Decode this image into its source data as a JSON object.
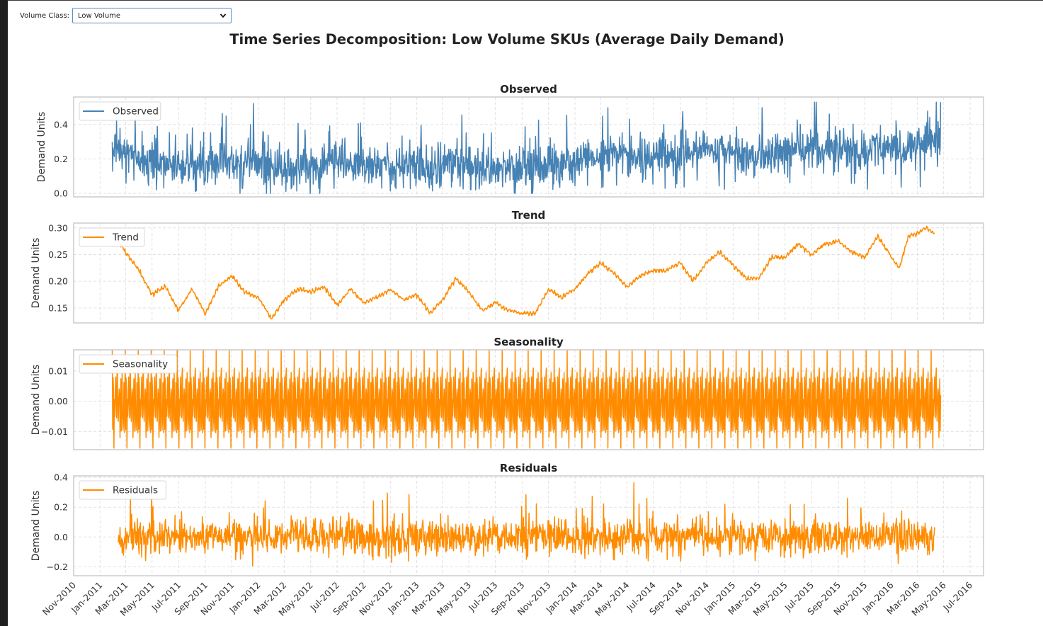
{
  "widget": {
    "label": "Volume Class:",
    "selected": "Low Volume",
    "icon": "chevron-down-icon"
  },
  "figure": {
    "suptitle": "Time Series Decomposition: Low Volume SKUs (Average Daily Demand)"
  },
  "chart_data": [
    {
      "type": "line",
      "title": "Observed",
      "ylabel": "Demand Units",
      "xlabel": "",
      "ylim": [
        -0.02,
        0.56
      ],
      "yticks": [
        "0.0",
        "0.2",
        "0.4"
      ],
      "ytick_values": [
        0.0,
        0.2,
        0.4
      ],
      "legend": "Observed",
      "legend_position": "top-left",
      "grid": true,
      "color": "#4682b4",
      "series": {
        "name": "Observed",
        "start": "2011-01-29",
        "end": "2016-04-24",
        "frequency": "daily",
        "trend_knots": [
          [
            "2011-01-29",
            0.28
          ],
          [
            "2011-03-15",
            0.23
          ],
          [
            "2011-05-15",
            0.18
          ],
          [
            "2011-08-01",
            0.15
          ],
          [
            "2011-10-01",
            0.17
          ],
          [
            "2011-12-01",
            0.19
          ],
          [
            "2012-02-01",
            0.16
          ],
          [
            "2012-03-15",
            0.14
          ],
          [
            "2012-06-01",
            0.18
          ],
          [
            "2012-09-01",
            0.16
          ],
          [
            "2012-12-01",
            0.17
          ],
          [
            "2013-02-01",
            0.15
          ],
          [
            "2013-04-01",
            0.2
          ],
          [
            "2013-06-01",
            0.15
          ],
          [
            "2013-09-15",
            0.14
          ],
          [
            "2013-11-01",
            0.18
          ],
          [
            "2014-02-01",
            0.19
          ],
          [
            "2014-04-01",
            0.23
          ],
          [
            "2014-06-01",
            0.2
          ],
          [
            "2014-09-01",
            0.23
          ],
          [
            "2014-12-01",
            0.25
          ],
          [
            "2015-03-01",
            0.21
          ],
          [
            "2015-05-01",
            0.25
          ],
          [
            "2015-09-01",
            0.27
          ],
          [
            "2015-11-01",
            0.24
          ],
          [
            "2015-12-15",
            0.28
          ],
          [
            "2016-02-01",
            0.24
          ],
          [
            "2016-03-01",
            0.29
          ],
          [
            "2016-04-24",
            0.3
          ]
        ],
        "noise_amplitude": 0.07,
        "min": 0.0,
        "max": 0.53
      }
    },
    {
      "type": "line",
      "title": "Trend",
      "ylabel": "Demand Units",
      "xlabel": "",
      "ylim": [
        0.122,
        0.309
      ],
      "yticks": [
        "0.15",
        "0.20",
        "0.25",
        "0.30"
      ],
      "ytick_values": [
        0.15,
        0.2,
        0.25,
        0.3
      ],
      "legend": "Trend",
      "legend_position": "top-left",
      "grid": true,
      "color": "#ff8c00",
      "series": {
        "name": "Trend",
        "start": "2011-02-12",
        "end": "2016-04-10",
        "points": [
          [
            "2011-02-12",
            0.275
          ],
          [
            "2011-03-01",
            0.255
          ],
          [
            "2011-04-01",
            0.22
          ],
          [
            "2011-05-01",
            0.175
          ],
          [
            "2011-06-01",
            0.19
          ],
          [
            "2011-07-01",
            0.145
          ],
          [
            "2011-08-01",
            0.185
          ],
          [
            "2011-09-01",
            0.14
          ],
          [
            "2011-10-01",
            0.19
          ],
          [
            "2011-11-01",
            0.21
          ],
          [
            "2011-12-01",
            0.18
          ],
          [
            "2012-01-01",
            0.17
          ],
          [
            "2012-02-01",
            0.13
          ],
          [
            "2012-03-01",
            0.165
          ],
          [
            "2012-04-01",
            0.185
          ],
          [
            "2012-05-01",
            0.18
          ],
          [
            "2012-06-01",
            0.19
          ],
          [
            "2012-07-01",
            0.155
          ],
          [
            "2012-08-01",
            0.185
          ],
          [
            "2012-09-01",
            0.16
          ],
          [
            "2012-10-01",
            0.17
          ],
          [
            "2012-11-01",
            0.185
          ],
          [
            "2012-12-01",
            0.165
          ],
          [
            "2013-01-01",
            0.175
          ],
          [
            "2013-02-01",
            0.14
          ],
          [
            "2013-03-01",
            0.165
          ],
          [
            "2013-04-01",
            0.205
          ],
          [
            "2013-05-01",
            0.18
          ],
          [
            "2013-06-01",
            0.145
          ],
          [
            "2013-07-01",
            0.16
          ],
          [
            "2013-08-01",
            0.145
          ],
          [
            "2013-09-01",
            0.14
          ],
          [
            "2013-10-01",
            0.14
          ],
          [
            "2013-11-01",
            0.185
          ],
          [
            "2013-12-01",
            0.17
          ],
          [
            "2014-01-01",
            0.185
          ],
          [
            "2014-02-01",
            0.215
          ],
          [
            "2014-03-01",
            0.235
          ],
          [
            "2014-04-01",
            0.215
          ],
          [
            "2014-05-01",
            0.19
          ],
          [
            "2014-06-01",
            0.21
          ],
          [
            "2014-07-01",
            0.22
          ],
          [
            "2014-08-01",
            0.22
          ],
          [
            "2014-09-01",
            0.235
          ],
          [
            "2014-10-01",
            0.2
          ],
          [
            "2014-11-01",
            0.235
          ],
          [
            "2014-12-01",
            0.255
          ],
          [
            "2015-01-01",
            0.23
          ],
          [
            "2015-02-01",
            0.205
          ],
          [
            "2015-03-01",
            0.205
          ],
          [
            "2015-04-01",
            0.245
          ],
          [
            "2015-05-01",
            0.245
          ],
          [
            "2015-06-01",
            0.27
          ],
          [
            "2015-07-01",
            0.25
          ],
          [
            "2015-08-01",
            0.27
          ],
          [
            "2015-09-01",
            0.275
          ],
          [
            "2015-10-01",
            0.255
          ],
          [
            "2015-11-01",
            0.245
          ],
          [
            "2015-12-01",
            0.285
          ],
          [
            "2016-01-01",
            0.245
          ],
          [
            "2016-01-20",
            0.225
          ],
          [
            "2016-02-10",
            0.285
          ],
          [
            "2016-03-01",
            0.29
          ],
          [
            "2016-03-20",
            0.3
          ],
          [
            "2016-04-10",
            0.29
          ]
        ]
      }
    },
    {
      "type": "line",
      "title": "Seasonality",
      "ylabel": "Demand Units",
      "xlabel": "",
      "ylim": [
        -0.016,
        0.017
      ],
      "yticks": [
        "−0.01",
        "0.00",
        "0.01"
      ],
      "ytick_values": [
        -0.01,
        0.0,
        0.01
      ],
      "legend": "Seasonality",
      "legend_position": "top-left",
      "grid": true,
      "color": "#ff8c00",
      "series": {
        "name": "Seasonality",
        "start": "2011-01-29",
        "end": "2016-04-24",
        "period_days": 30,
        "max": 0.017,
        "min": -0.0155
      }
    },
    {
      "type": "line",
      "title": "Residuals",
      "ylabel": "Demand Units",
      "xlabel": "",
      "ylim": [
        -0.26,
        0.41
      ],
      "yticks": [
        "−0.2",
        "0.0",
        "0.2",
        "0.4"
      ],
      "ytick_values": [
        -0.2,
        0.0,
        0.2,
        0.4
      ],
      "legend": "Residuals",
      "legend_position": "top-left",
      "grid": true,
      "color": "#ff8c00",
      "series": {
        "name": "Residuals",
        "start": "2011-02-12",
        "end": "2016-04-10",
        "noise_amplitude": 0.06,
        "max": 0.38,
        "min": -0.24
      }
    }
  ],
  "x_axis": {
    "xlim": [
      "2010-11-01",
      "2016-08-01"
    ],
    "tick_dates": [
      "2010-11-01",
      "2011-01-01",
      "2011-03-01",
      "2011-05-01",
      "2011-07-01",
      "2011-09-01",
      "2011-11-01",
      "2012-01-01",
      "2012-03-01",
      "2012-05-01",
      "2012-07-01",
      "2012-09-01",
      "2012-11-01",
      "2013-01-01",
      "2013-03-01",
      "2013-05-01",
      "2013-07-01",
      "2013-09-01",
      "2013-11-01",
      "2014-01-01",
      "2014-03-01",
      "2014-05-01",
      "2014-07-01",
      "2014-09-01",
      "2014-11-01",
      "2015-01-01",
      "2015-03-01",
      "2015-05-01",
      "2015-07-01",
      "2015-09-01",
      "2015-11-01",
      "2016-01-01",
      "2016-03-01",
      "2016-05-01",
      "2016-07-01"
    ],
    "tick_labels": [
      "Nov-2010",
      "Jan-2011",
      "Mar-2011",
      "May-2011",
      "Jul-2011",
      "Sep-2011",
      "Nov-2011",
      "Jan-2012",
      "Mar-2012",
      "May-2012",
      "Jul-2012",
      "Sep-2012",
      "Nov-2012",
      "Jan-2013",
      "Mar-2013",
      "May-2013",
      "Jul-2013",
      "Sep-2013",
      "Nov-2013",
      "Jan-2014",
      "Mar-2014",
      "May-2014",
      "Jul-2014",
      "Sep-2014",
      "Nov-2014",
      "Jan-2015",
      "Mar-2015",
      "May-2015",
      "Jul-2015",
      "Sep-2015",
      "Nov-2015",
      "Jan-2016",
      "Mar-2016",
      "May-2016",
      "Jul-2016"
    ]
  }
}
